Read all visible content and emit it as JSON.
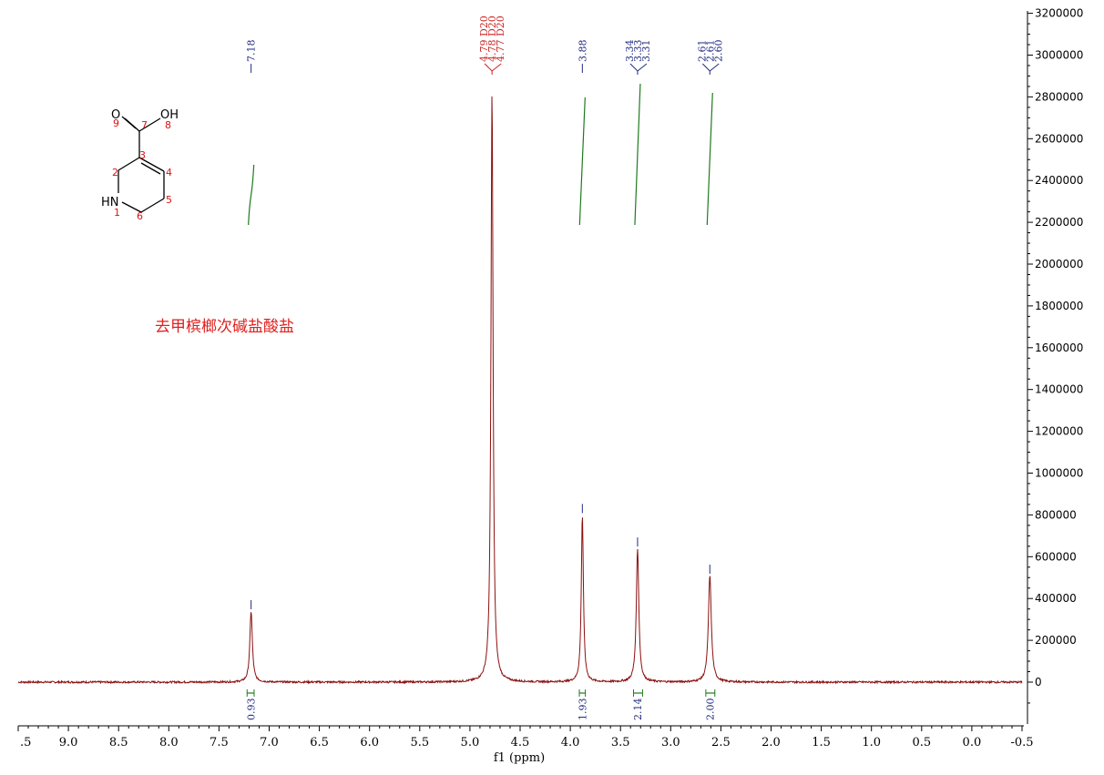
{
  "chart_data": {
    "type": "line",
    "xlabel": "f1 (ppm)",
    "ylabel": "",
    "xlim": [
      9.5,
      -0.5
    ],
    "ylim": [
      -200000,
      3200000
    ],
    "x_reversed": true,
    "x_ticks": [
      ".5",
      "9.0",
      "8.5",
      "8.0",
      "7.5",
      "7.0",
      "6.5",
      "6.0",
      "5.5",
      "5.0",
      "4.5",
      "4.0",
      "3.5",
      "3.0",
      "2.5",
      "2.0",
      "1.5",
      "1.0",
      "0.5",
      "0.0",
      "-0.5"
    ],
    "y_ticks": [
      "3200000",
      "3000000",
      "2800000",
      "2600000",
      "2400000",
      "2200000",
      "2000000",
      "1800000",
      "1600000",
      "1400000",
      "1200000",
      "1000000",
      "800000",
      "600000",
      "400000",
      "200000",
      "0"
    ],
    "grid": false,
    "colors": {
      "spectrum": "#8b1010",
      "integral": "#1f7a1f",
      "peak_label": "#1f2a80",
      "solvent_label": "#cc2222"
    },
    "peaks": [
      {
        "ppm": 7.18,
        "height": 340000,
        "width": 0.03
      },
      {
        "ppm": 4.78,
        "height": 2830000,
        "width": 0.025
      },
      {
        "ppm": 3.88,
        "height": 800000,
        "width": 0.025
      },
      {
        "ppm": 3.33,
        "height": 640000,
        "width": 0.03
      },
      {
        "ppm": 2.61,
        "height": 510000,
        "width": 0.035
      }
    ],
    "peak_label_groups": [
      {
        "labels": [
          "7.18"
        ],
        "ppm": 7.18,
        "solvent": false
      },
      {
        "labels": [
          "4.79 D20",
          "4.78 D20",
          "4.77 D20"
        ],
        "ppm": 4.78,
        "solvent": true
      },
      {
        "labels": [
          "3.88"
        ],
        "ppm": 3.88,
        "solvent": false
      },
      {
        "labels": [
          "3.34",
          "3.33",
          "3.31"
        ],
        "ppm": 3.33,
        "solvent": false
      },
      {
        "labels": [
          "2.61",
          "2.61",
          "2.60"
        ],
        "ppm": 2.61,
        "solvent": false
      }
    ],
    "integrals": [
      {
        "ppm": 7.18,
        "value": "0.93",
        "from": 7.22,
        "to": 7.15
      },
      {
        "ppm": 3.88,
        "value": "1.93",
        "from": 3.91,
        "to": 3.85
      },
      {
        "ppm": 3.33,
        "value": "2.14",
        "from": 3.37,
        "to": 3.28
      },
      {
        "ppm": 2.61,
        "value": "2.00",
        "from": 2.65,
        "to": 2.56
      }
    ],
    "compound_name": "去甲槟榔次碱盐酸盐",
    "structure": {
      "atoms": [
        "O",
        "OH",
        "HN"
      ],
      "numbers": [
        "9",
        "7",
        "8",
        "3",
        "2",
        "4",
        "5",
        "1",
        "6"
      ]
    }
  }
}
